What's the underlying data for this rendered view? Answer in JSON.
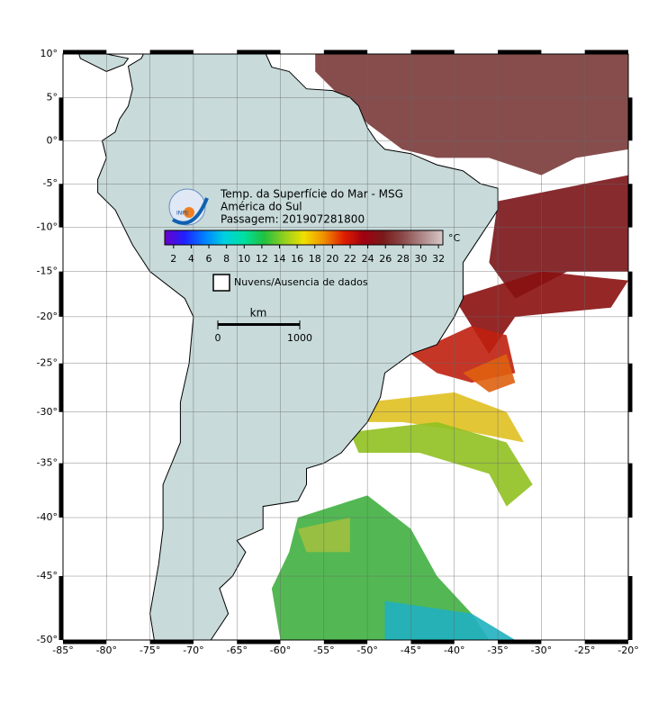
{
  "map": {
    "title_lines": [
      "Temp. da Superfície do Mar - MSG",
      "América do Sul",
      "Passagem: 201907281800"
    ],
    "logo_text": "INPE",
    "xlim": [
      -85,
      -20
    ],
    "ylim": [
      -50,
      10
    ],
    "xticks": [
      {
        "value": -85,
        "label": "-85°"
      },
      {
        "value": -80,
        "label": "-80°"
      },
      {
        "value": -75,
        "label": "-75°"
      },
      {
        "value": -70,
        "label": "-70°"
      },
      {
        "value": -65,
        "label": "-65°"
      },
      {
        "value": -60,
        "label": "-60°"
      },
      {
        "value": -55,
        "label": "-55°"
      },
      {
        "value": -50,
        "label": "-50°"
      },
      {
        "value": -45,
        "label": "-45°"
      },
      {
        "value": -40,
        "label": "-40°"
      },
      {
        "value": -35,
        "label": "-35°"
      },
      {
        "value": -30,
        "label": "-30°"
      },
      {
        "value": -25,
        "label": "-25°"
      },
      {
        "value": -20,
        "label": "-20°"
      }
    ],
    "yticks": [
      {
        "value": 10,
        "label": "10°"
      },
      {
        "value": 5,
        "label": "5°"
      },
      {
        "value": 0,
        "label": "0°"
      },
      {
        "value": -5,
        "label": "-5°"
      },
      {
        "value": -10,
        "label": "-10°"
      },
      {
        "value": -15,
        "label": "-15°"
      },
      {
        "value": -20,
        "label": "-20°"
      },
      {
        "value": -25,
        "label": "-25°"
      },
      {
        "value": -30,
        "label": "-30°"
      },
      {
        "value": -35,
        "label": "-35°"
      },
      {
        "value": -40,
        "label": "-40°"
      },
      {
        "value": -45,
        "label": "-45°"
      },
      {
        "value": -50,
        "label": "-50°"
      }
    ],
    "grid": true,
    "colorbar": {
      "lim": [
        1,
        32.5
      ],
      "ticks": [
        2,
        4,
        6,
        8,
        10,
        12,
        14,
        16,
        18,
        20,
        22,
        24,
        26,
        28,
        30,
        32
      ],
      "unit": "°C",
      "colors": [
        "#6a00c8",
        "#2020ff",
        "#0080ff",
        "#00d0e0",
        "#00e0a0",
        "#20c040",
        "#90d020",
        "#f0e000",
        "#f09000",
        "#e02000",
        "#a00010",
        "#7a1a1a",
        "#8a4a4a",
        "#b08a8a",
        "#d8c8c8"
      ]
    },
    "legend": {
      "label": "Nuvens/Ausencia de dados"
    },
    "scale_bar": {
      "unit": "km",
      "ticks": [
        0,
        1000
      ]
    }
  }
}
